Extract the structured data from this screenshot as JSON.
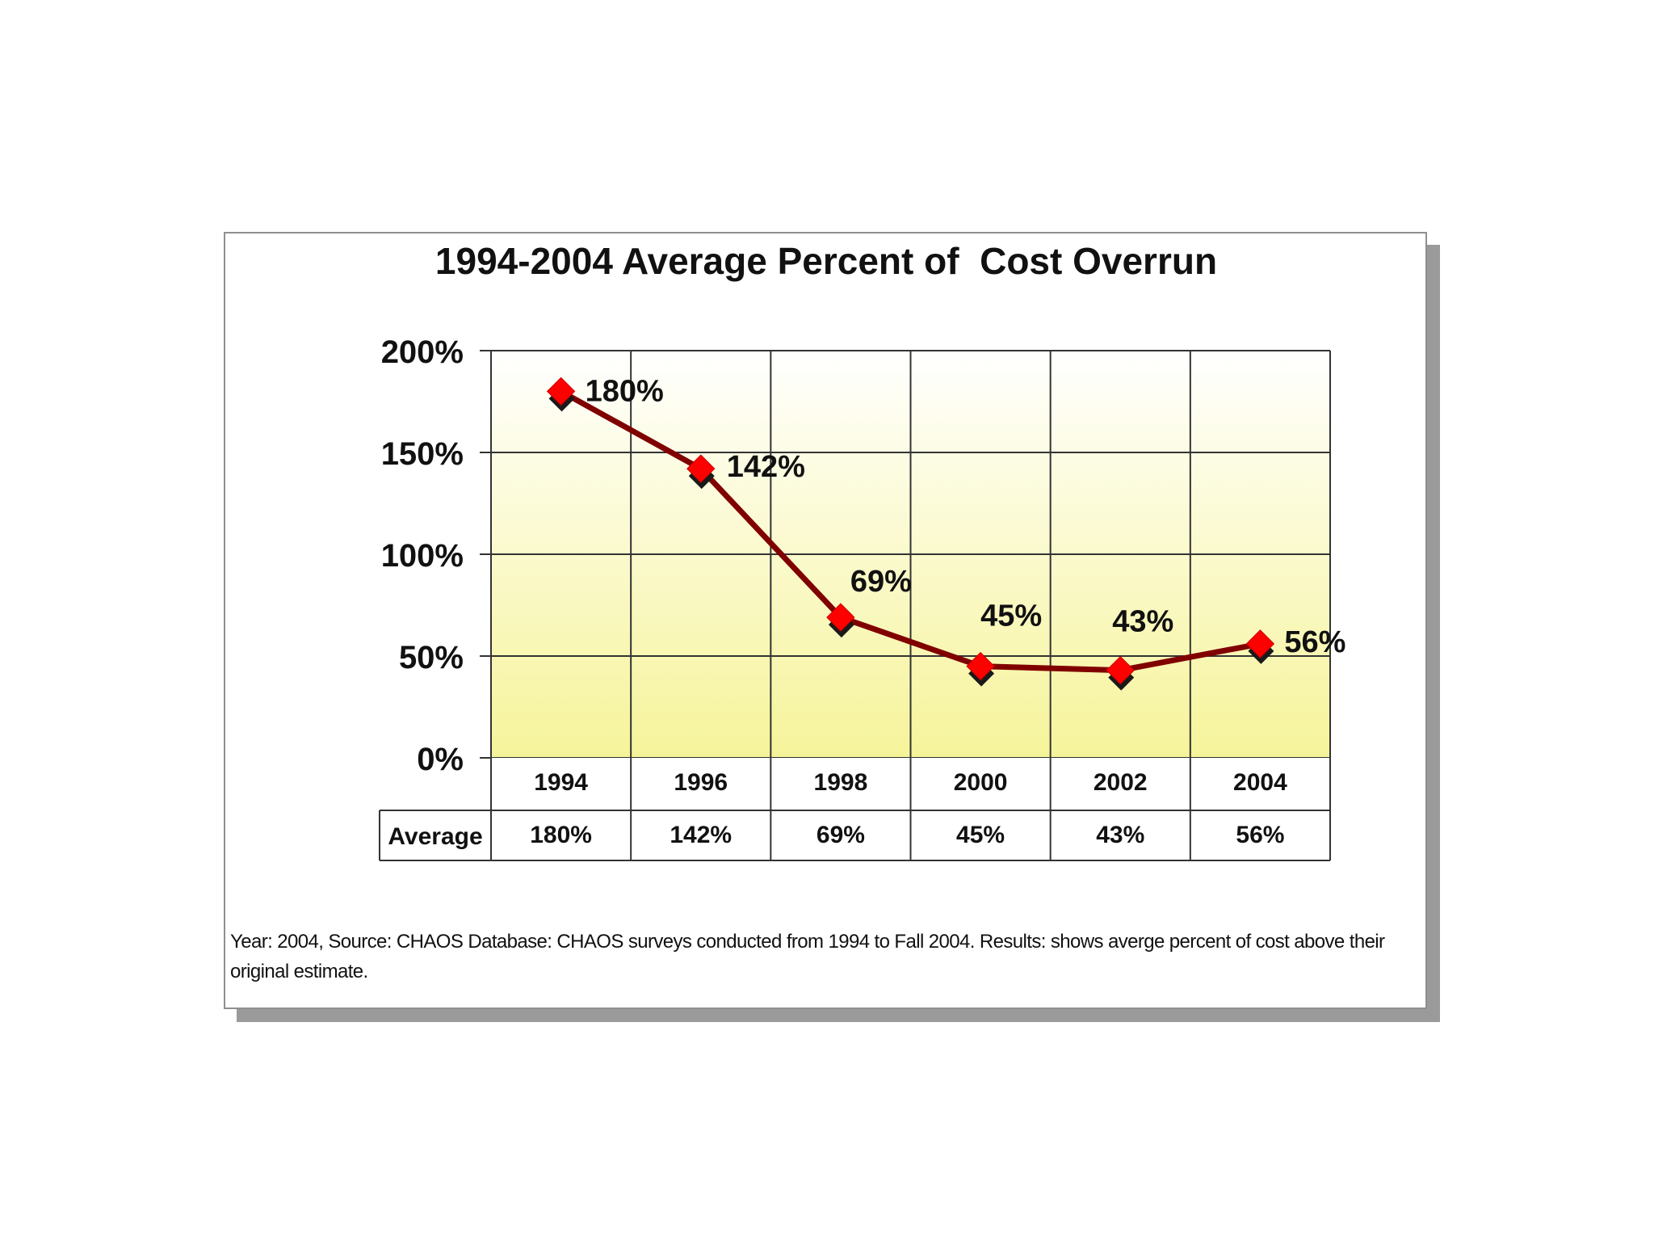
{
  "chart_data": {
    "type": "line",
    "title": "1994-2004 Average Percent of  Cost Overrun",
    "xlabel": "",
    "ylabel": "",
    "categories": [
      "1994",
      "1996",
      "1998",
      "2000",
      "2002",
      "2004"
    ],
    "series": [
      {
        "values": [
          180,
          142,
          69,
          45,
          43,
          56
        ],
        "data_labels": [
          "180%",
          "142%",
          "69%",
          "45%",
          "43%",
          "56%"
        ]
      }
    ],
    "ylim": [
      0,
      200
    ],
    "yticks": [
      0,
      50,
      100,
      150,
      200
    ],
    "ytick_labels": [
      "0%",
      "50%",
      "100%",
      "150%",
      "200%"
    ],
    "grid": true,
    "data_table": {
      "row_label": "Average",
      "cells": [
        "180%",
        "142%",
        "69%",
        "45%",
        "43%",
        "56%"
      ]
    },
    "colors": {
      "line": "#800000",
      "marker": "#ff0000",
      "marker_shadow": "#1a1a1a",
      "plot_top": "#ffffff",
      "plot_bottom": "#f6f49a",
      "grid": "#333333"
    }
  },
  "footnote": "Year: 2004, Source: CHAOS Database: CHAOS surveys conducted from 1994 to Fall 2004. Results: shows averge percent of cost above their original estimate."
}
